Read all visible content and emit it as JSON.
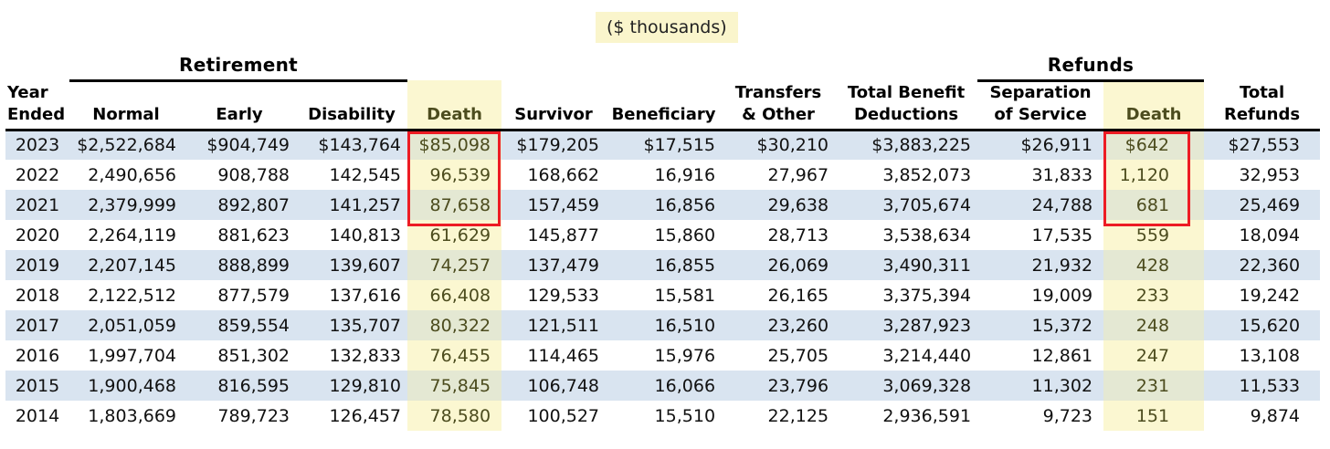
{
  "unit_note": "($ thousands)",
  "colors": {
    "row_stripe_blue": "#d9e4f0",
    "highlight_yellow": "#fbf7d1",
    "highlight_yellow_on_blue": "#e4e8d3",
    "highlight_text_olive": "#4c4c1e",
    "annotation_red": "#ed1c24"
  },
  "table": {
    "groups": [
      {
        "label": "Retirement"
      },
      {
        "label": "Refunds"
      }
    ],
    "columns": [
      {
        "label": "Year\nEnded",
        "highlight": false
      },
      {
        "label": "Normal",
        "highlight": false
      },
      {
        "label": "Early",
        "highlight": false
      },
      {
        "label": "Disability",
        "highlight": false
      },
      {
        "label": "Death",
        "highlight": true
      },
      {
        "label": "Survivor",
        "highlight": false
      },
      {
        "label": "Beneficiary",
        "highlight": false
      },
      {
        "label": "Transfers\n& Other",
        "highlight": false
      },
      {
        "label": "Total Benefit\nDeductions",
        "highlight": false
      },
      {
        "label": "Separation\nof Service",
        "highlight": false
      },
      {
        "label": "Death",
        "highlight": true
      },
      {
        "label": "Total\nRefunds",
        "highlight": false
      }
    ],
    "rows": [
      {
        "year": "2023",
        "values": [
          "$2,522,684",
          "$904,749",
          "$143,764",
          "$85,098",
          "$179,205",
          "$17,515",
          "$30,210",
          "$3,883,225",
          "$26,911",
          "$642",
          "$27,553"
        ]
      },
      {
        "year": "2022",
        "values": [
          "2,490,656",
          "908,788",
          "142,545",
          "96,539",
          "168,662",
          "16,916",
          "27,967",
          "3,852,073",
          "31,833",
          "1,120",
          "32,953"
        ]
      },
      {
        "year": "2021",
        "values": [
          "2,379,999",
          "892,807",
          "141,257",
          "87,658",
          "157,459",
          "16,856",
          "29,638",
          "3,705,674",
          "24,788",
          "681",
          "25,469"
        ]
      },
      {
        "year": "2020",
        "values": [
          "2,264,119",
          "881,623",
          "140,813",
          "61,629",
          "145,877",
          "15,860",
          "28,713",
          "3,538,634",
          "17,535",
          "559",
          "18,094"
        ]
      },
      {
        "year": "2019",
        "values": [
          "2,207,145",
          "888,899",
          "139,607",
          "74,257",
          "137,479",
          "16,855",
          "26,069",
          "3,490,311",
          "21,932",
          "428",
          "22,360"
        ]
      },
      {
        "year": "2018",
        "values": [
          "2,122,512",
          "877,579",
          "137,616",
          "66,408",
          "129,533",
          "15,581",
          "26,165",
          "3,375,394",
          "19,009",
          "233",
          "19,242"
        ]
      },
      {
        "year": "2017",
        "values": [
          "2,051,059",
          "859,554",
          "135,707",
          "80,322",
          "121,511",
          "16,510",
          "23,260",
          "3,287,923",
          "15,372",
          "248",
          "15,620"
        ]
      },
      {
        "year": "2016",
        "values": [
          "1,997,704",
          "851,302",
          "132,833",
          "76,455",
          "114,465",
          "15,976",
          "25,705",
          "3,214,440",
          "12,861",
          "247",
          "13,108"
        ]
      },
      {
        "year": "2015",
        "values": [
          "1,900,468",
          "816,595",
          "129,810",
          "75,845",
          "106,748",
          "16,066",
          "23,796",
          "3,069,328",
          "11,302",
          "231",
          "11,533"
        ]
      },
      {
        "year": "2014",
        "values": [
          "1,803,669",
          "789,723",
          "126,457",
          "78,580",
          "100,527",
          "15,510",
          "22,125",
          "2,936,591",
          "9,723",
          "151",
          "9,874"
        ]
      }
    ]
  }
}
